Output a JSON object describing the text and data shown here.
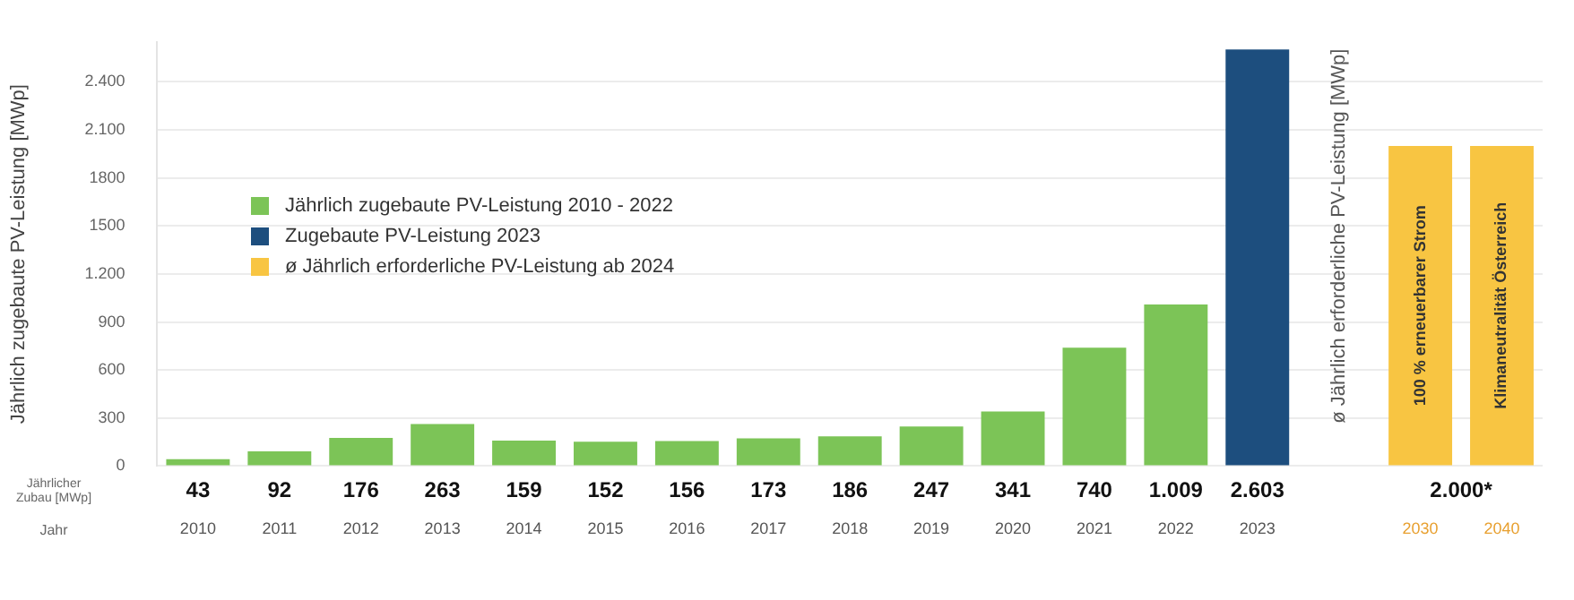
{
  "chart_data": {
    "type": "bar",
    "ylabel": "Jährlich zugebaute PV-Leistung [MWp]",
    "y2label": "ø Jährlich erforderliche PV-Leistung [MWp]",
    "xlabel": "Jahr",
    "categories": [
      "2010",
      "2011",
      "2012",
      "2013",
      "2014",
      "2015",
      "2016",
      "2017",
      "2018",
      "2019",
      "2020",
      "2021",
      "2022",
      "2023",
      null,
      "2030",
      "2040"
    ],
    "series": [
      {
        "name": "Jährlich zugebaute PV-Leistung 2010 - 2022",
        "color": "#7cc457",
        "values": [
          43,
          92,
          176,
          263,
          159,
          152,
          156,
          173,
          186,
          247,
          341,
          740,
          1009,
          null,
          null,
          null,
          null
        ],
        "value_labels": [
          "43",
          "92",
          "176",
          "263",
          "159",
          "152",
          "156",
          "173",
          "186",
          "247",
          "341",
          "740",
          "1.009",
          null,
          null,
          null,
          null
        ]
      },
      {
        "name": "Zugebaute PV-Leistung 2023",
        "color": "#1d4e7e",
        "values": [
          null,
          null,
          null,
          null,
          null,
          null,
          null,
          null,
          null,
          null,
          null,
          null,
          null,
          2603,
          null,
          null,
          null
        ],
        "value_labels": [
          null,
          null,
          null,
          null,
          null,
          null,
          null,
          null,
          null,
          null,
          null,
          null,
          null,
          "2.603",
          null,
          null,
          null
        ]
      },
      {
        "name": "ø Jährlich erforderliche PV-Leistung ab 2024",
        "color": "#f8c542",
        "values": [
          null,
          null,
          null,
          null,
          null,
          null,
          null,
          null,
          null,
          null,
          null,
          null,
          null,
          null,
          null,
          2000,
          2000
        ],
        "value_labels": [
          null,
          null,
          null,
          null,
          null,
          null,
          null,
          null,
          null,
          null,
          null,
          null,
          null,
          null,
          null,
          "2.000*",
          null
        ]
      }
    ],
    "ylim": [
      0,
      2650
    ],
    "yticks": [
      0,
      300,
      600,
      900,
      {
        "value": 1200,
        "label": "1.200"
      },
      {
        "value": 1500,
        "label": "1500"
      },
      {
        "value": 1800,
        "label": "1800"
      },
      {
        "value": 2100,
        "label": "2.100"
      },
      {
        "value": 2400,
        "label": "2.400"
      }
    ],
    "grid": "y",
    "legend": "left",
    "annotations": [
      "Jährlicher Zubau [MWp]",
      "100 % erneuerbarer Strom",
      "Klimaneutralität Österreich"
    ]
  }
}
